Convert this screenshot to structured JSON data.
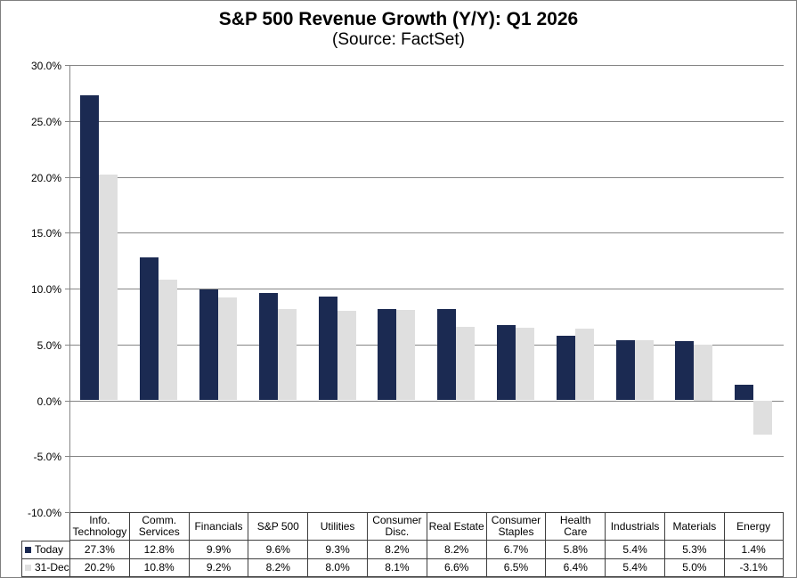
{
  "title": "S&P 500 Revenue Growth (Y/Y): Q1 2026",
  "subtitle": "(Source: FactSet)",
  "chart_data": {
    "type": "bar",
    "title": "S&P 500 Revenue Growth (Y/Y): Q1 2026",
    "subtitle": "(Source: FactSet)",
    "categories": [
      "Info. Technology",
      "Comm. Services",
      "Financials",
      "S&P 500",
      "Utilities",
      "Consumer Disc.",
      "Real Estate",
      "Consumer Staples",
      "Health Care",
      "Industrials",
      "Materials",
      "Energy"
    ],
    "category_display": [
      "Info.\nTechnology",
      "Comm.\nServices",
      "Financials",
      "S&P 500",
      "Utilities",
      "Consumer\nDisc.",
      "Real Estate",
      "Consumer\nStaples",
      "Health\nCare",
      "Industrials",
      "Materials",
      "Energy"
    ],
    "series": [
      {
        "name": "Today",
        "color": "#1b2a52",
        "values": [
          27.3,
          12.8,
          9.9,
          9.6,
          9.3,
          8.2,
          8.2,
          6.7,
          5.8,
          5.4,
          5.3,
          1.4
        ]
      },
      {
        "name": "31-Dec",
        "color": "#dfdfdf",
        "values": [
          20.2,
          10.8,
          9.2,
          8.2,
          8.0,
          8.1,
          6.6,
          6.5,
          6.4,
          5.4,
          5.0,
          -3.1
        ]
      }
    ],
    "value_suffix": "%",
    "ylim": [
      -10,
      30
    ],
    "ytick_step": 5,
    "ytick_labels": [
      "30.0%",
      "25.0%",
      "20.0%",
      "15.0%",
      "10.0%",
      "5.0%",
      "0.0%",
      "-5.0%",
      "-10.0%"
    ],
    "grid": true,
    "legend_position": "table-left"
  },
  "colors": {
    "today_bar": "#1b2a52",
    "dec_bar": "#dfdfdf",
    "gridline": "#858585",
    "axis": "#858585",
    "table_border": "#3f3f3f",
    "frame_border": "#7f7f7f",
    "text": "#000000"
  }
}
